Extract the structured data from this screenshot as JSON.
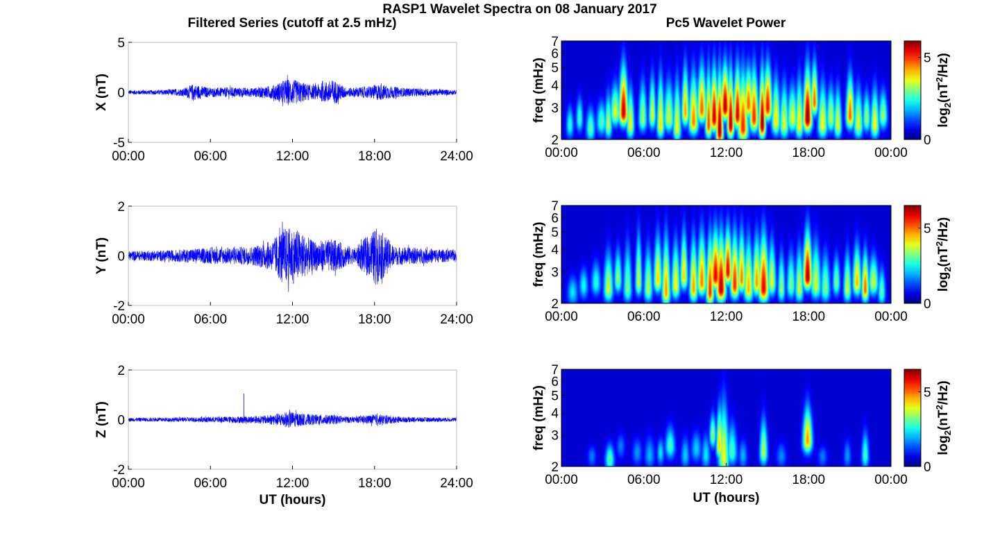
{
  "figure_title": "RASP1 Wavelet Spectra on 08 January 2017",
  "left_column_title": "Filtered Series (cutoff at 2.5 mHz)",
  "right_column_title": "Pc5 Wavelet Power",
  "chart_data": [
    {
      "type": "line",
      "panel": "X time series",
      "ylabel": "X (nT)",
      "xlabel": "",
      "ylim": [
        -5,
        5
      ],
      "yticks": [
        "5",
        "0",
        "-5"
      ],
      "xlim_hours": [
        0,
        24
      ],
      "xticks": [
        "00:00",
        "06:00",
        "12:00",
        "18:00",
        "24:00"
      ],
      "line_color": "#0000ff",
      "envelope": [
        {
          "t": 0,
          "amp": 0.3
        },
        {
          "t": 2,
          "amp": 0.3
        },
        {
          "t": 4,
          "amp": 0.5
        },
        {
          "t": 4.7,
          "amp": 1.1
        },
        {
          "t": 6,
          "amp": 0.6
        },
        {
          "t": 7.5,
          "amp": 0.7
        },
        {
          "t": 9,
          "amp": 0.6
        },
        {
          "t": 10.5,
          "amp": 0.9
        },
        {
          "t": 11.6,
          "amp": 1.8
        },
        {
          "t": 12.3,
          "amp": 1.6
        },
        {
          "t": 13.5,
          "amp": 0.9
        },
        {
          "t": 15,
          "amp": 1.7
        },
        {
          "t": 16,
          "amp": 0.6
        },
        {
          "t": 17.5,
          "amp": 0.8
        },
        {
          "t": 18.3,
          "amp": 1.1
        },
        {
          "t": 20,
          "amp": 0.6
        },
        {
          "t": 22,
          "amp": 0.5
        },
        {
          "t": 24,
          "amp": 0.3
        }
      ]
    },
    {
      "type": "line",
      "panel": "Y time series",
      "ylabel": "Y (nT)",
      "xlabel": "",
      "ylim": [
        -2,
        2
      ],
      "yticks": [
        "2",
        "0",
        "-2"
      ],
      "xlim_hours": [
        0,
        24
      ],
      "xticks": [
        "00:00",
        "06:00",
        "12:00",
        "18:00",
        "24:00"
      ],
      "line_color": "#0000ff",
      "envelope": [
        {
          "t": 0,
          "amp": 0.25
        },
        {
          "t": 3,
          "amp": 0.3
        },
        {
          "t": 5,
          "amp": 0.4
        },
        {
          "t": 7,
          "amp": 0.45
        },
        {
          "t": 9,
          "amp": 0.5
        },
        {
          "t": 10.5,
          "amp": 0.8
        },
        {
          "t": 11.3,
          "amp": 1.5
        },
        {
          "t": 12.2,
          "amp": 1.5
        },
        {
          "t": 13.5,
          "amp": 0.8
        },
        {
          "t": 15,
          "amp": 0.9
        },
        {
          "t": 16.5,
          "amp": 0.4
        },
        {
          "t": 18.2,
          "amp": 1.55
        },
        {
          "t": 19.5,
          "amp": 0.5
        },
        {
          "t": 22,
          "amp": 0.4
        },
        {
          "t": 24,
          "amp": 0.3
        }
      ]
    },
    {
      "type": "line",
      "panel": "Z time series",
      "ylabel": "Z (nT)",
      "xlabel": "UT (hours)",
      "ylim": [
        -2,
        2
      ],
      "yticks": [
        "2",
        "0",
        "-2"
      ],
      "xlim_hours": [
        0,
        24
      ],
      "xticks": [
        "00:00",
        "06:00",
        "12:00",
        "18:00",
        "24:00"
      ],
      "line_color": "#0000ff",
      "spike": {
        "t": 8.45,
        "value": 1.05
      },
      "envelope": [
        {
          "t": 0,
          "amp": 0.1
        },
        {
          "t": 4,
          "amp": 0.12
        },
        {
          "t": 6,
          "amp": 0.15
        },
        {
          "t": 8,
          "amp": 0.18
        },
        {
          "t": 10,
          "amp": 0.22
        },
        {
          "t": 11.8,
          "amp": 0.45
        },
        {
          "t": 13,
          "amp": 0.3
        },
        {
          "t": 15,
          "amp": 0.25
        },
        {
          "t": 16.5,
          "amp": 0.15
        },
        {
          "t": 18.2,
          "amp": 0.3
        },
        {
          "t": 20,
          "amp": 0.15
        },
        {
          "t": 24,
          "amp": 0.1
        }
      ]
    },
    {
      "type": "heatmap",
      "panel": "X wavelet power",
      "ylabel": "freq (mHz)",
      "xlabel": "",
      "ylim_mhz": [
        2,
        7
      ],
      "y_scale": "log",
      "yticks": [
        "2",
        "3",
        "4",
        "5",
        "6",
        "7"
      ],
      "xlim_hours": [
        0,
        24
      ],
      "xticks": [
        "00:00",
        "06:00",
        "12:00",
        "18:00",
        "00:00"
      ],
      "colormap": "jet",
      "colorbar_label_main": "log",
      "colorbar_label_sub": "2",
      "colorbar_label_paren_open": "(nT",
      "colorbar_label_sup": "2",
      "colorbar_label_rest": "/Hz)",
      "colorbar_range": [
        0,
        6
      ],
      "colorbar_ticks": [
        "5",
        "0"
      ],
      "bursts": [
        {
          "t": 0.6,
          "f": 2.4,
          "p": 2.2,
          "top": 3.5
        },
        {
          "t": 1.3,
          "f": 2.6,
          "p": 2.4,
          "top": 4.0
        },
        {
          "t": 2.1,
          "f": 2.3,
          "p": 2.6,
          "top": 3.5
        },
        {
          "t": 2.9,
          "f": 2.5,
          "p": 2.5,
          "top": 3.8
        },
        {
          "t": 3.4,
          "f": 2.4,
          "p": 3.2,
          "top": 4.5
        },
        {
          "t": 3.9,
          "f": 2.8,
          "p": 3.4,
          "top": 5.0
        },
        {
          "t": 4.5,
          "f": 2.8,
          "p": 5.6,
          "top": 7.0
        },
        {
          "t": 5.0,
          "f": 2.4,
          "p": 3.6,
          "top": 5.0
        },
        {
          "t": 5.9,
          "f": 2.6,
          "p": 3.0,
          "top": 5.5
        },
        {
          "t": 6.6,
          "f": 2.7,
          "p": 3.4,
          "top": 6.0
        },
        {
          "t": 7.2,
          "f": 2.4,
          "p": 3.8,
          "top": 6.5
        },
        {
          "t": 7.8,
          "f": 2.6,
          "p": 3.3,
          "top": 5.5
        },
        {
          "t": 8.4,
          "f": 2.3,
          "p": 3.6,
          "top": 6.0
        },
        {
          "t": 9.0,
          "f": 2.8,
          "p": 4.2,
          "top": 7.0
        },
        {
          "t": 9.6,
          "f": 2.5,
          "p": 4.4,
          "top": 6.5
        },
        {
          "t": 10.2,
          "f": 2.9,
          "p": 4.6,
          "top": 7.0
        },
        {
          "t": 10.7,
          "f": 2.4,
          "p": 4.8,
          "top": 7.0
        },
        {
          "t": 11.1,
          "f": 2.6,
          "p": 5.6,
          "top": 7.0
        },
        {
          "t": 11.5,
          "f": 2.2,
          "p": 5.9,
          "top": 7.0
        },
        {
          "t": 11.9,
          "f": 3.0,
          "p": 5.7,
          "top": 7.0
        },
        {
          "t": 12.3,
          "f": 2.4,
          "p": 5.8,
          "top": 7.0
        },
        {
          "t": 12.8,
          "f": 2.7,
          "p": 5.5,
          "top": 7.0
        },
        {
          "t": 13.2,
          "f": 2.3,
          "p": 5.0,
          "top": 7.0
        },
        {
          "t": 13.6,
          "f": 3.1,
          "p": 4.6,
          "top": 6.5
        },
        {
          "t": 14.0,
          "f": 2.6,
          "p": 5.0,
          "top": 7.0
        },
        {
          "t": 14.6,
          "f": 2.4,
          "p": 6.0,
          "top": 7.0
        },
        {
          "t": 15.0,
          "f": 3.0,
          "p": 5.2,
          "top": 7.0
        },
        {
          "t": 15.6,
          "f": 2.5,
          "p": 3.8,
          "top": 6.0
        },
        {
          "t": 16.2,
          "f": 2.4,
          "p": 3.4,
          "top": 5.5
        },
        {
          "t": 16.8,
          "f": 2.6,
          "p": 3.5,
          "top": 5.0
        },
        {
          "t": 17.3,
          "f": 2.4,
          "p": 3.8,
          "top": 6.0
        },
        {
          "t": 17.9,
          "f": 2.6,
          "p": 6.0,
          "top": 7.0
        },
        {
          "t": 18.4,
          "f": 3.2,
          "p": 4.6,
          "top": 7.0
        },
        {
          "t": 19.0,
          "f": 2.4,
          "p": 3.6,
          "top": 5.5
        },
        {
          "t": 19.6,
          "f": 2.6,
          "p": 3.2,
          "top": 5.0
        },
        {
          "t": 20.1,
          "f": 2.4,
          "p": 3.5,
          "top": 5.0
        },
        {
          "t": 21.0,
          "f": 2.7,
          "p": 4.6,
          "top": 6.0
        },
        {
          "t": 21.6,
          "f": 2.4,
          "p": 3.4,
          "top": 5.0
        },
        {
          "t": 22.2,
          "f": 2.6,
          "p": 3.0,
          "top": 4.5
        },
        {
          "t": 22.8,
          "f": 2.4,
          "p": 3.6,
          "top": 5.0
        },
        {
          "t": 23.4,
          "f": 2.7,
          "p": 3.0,
          "top": 4.5
        }
      ]
    },
    {
      "type": "heatmap",
      "panel": "Y wavelet power",
      "ylabel": "freq (mHz)",
      "xlabel": "",
      "ylim_mhz": [
        2,
        7
      ],
      "y_scale": "log",
      "yticks": [
        "2",
        "3",
        "4",
        "5",
        "6",
        "7"
      ],
      "xlim_hours": [
        0,
        24
      ],
      "xticks": [
        "00:00",
        "06:00",
        "12:00",
        "18:00",
        "00:00"
      ],
      "colormap": "jet",
      "colorbar_label_main": "log",
      "colorbar_label_sub": "2",
      "colorbar_label_paren_open": "(nT",
      "colorbar_label_sup": "2",
      "colorbar_label_rest": "/Hz)",
      "colorbar_range": [
        0,
        6.5
      ],
      "colorbar_ticks": [
        "5",
        "0"
      ],
      "bursts": [
        {
          "t": 0.8,
          "f": 2.3,
          "p": 2.0,
          "top": 3.2
        },
        {
          "t": 1.6,
          "f": 2.5,
          "p": 2.2,
          "top": 3.6
        },
        {
          "t": 2.5,
          "f": 2.6,
          "p": 2.4,
          "top": 4.0
        },
        {
          "t": 3.4,
          "f": 2.4,
          "p": 3.6,
          "top": 5.0
        },
        {
          "t": 4.1,
          "f": 2.7,
          "p": 3.2,
          "top": 5.0
        },
        {
          "t": 4.8,
          "f": 2.4,
          "p": 3.0,
          "top": 6.0
        },
        {
          "t": 5.6,
          "f": 2.6,
          "p": 3.6,
          "top": 7.0
        },
        {
          "t": 6.3,
          "f": 2.4,
          "p": 3.4,
          "top": 5.5
        },
        {
          "t": 7.0,
          "f": 2.7,
          "p": 4.2,
          "top": 6.5
        },
        {
          "t": 7.6,
          "f": 2.3,
          "p": 4.6,
          "top": 7.0
        },
        {
          "t": 8.3,
          "f": 2.5,
          "p": 4.0,
          "top": 6.0
        },
        {
          "t": 8.9,
          "f": 2.8,
          "p": 4.2,
          "top": 7.0
        },
        {
          "t": 9.6,
          "f": 2.4,
          "p": 4.6,
          "top": 6.5
        },
        {
          "t": 10.2,
          "f": 2.6,
          "p": 4.8,
          "top": 7.0
        },
        {
          "t": 10.8,
          "f": 2.3,
          "p": 5.4,
          "top": 7.0
        },
        {
          "t": 11.2,
          "f": 2.8,
          "p": 5.8,
          "top": 7.0
        },
        {
          "t": 11.6,
          "f": 2.4,
          "p": 6.2,
          "top": 7.0
        },
        {
          "t": 12.1,
          "f": 3.0,
          "p": 5.8,
          "top": 7.0
        },
        {
          "t": 12.6,
          "f": 2.5,
          "p": 5.4,
          "top": 7.0
        },
        {
          "t": 13.1,
          "f": 2.7,
          "p": 4.8,
          "top": 7.0
        },
        {
          "t": 13.6,
          "f": 2.4,
          "p": 4.4,
          "top": 6.5
        },
        {
          "t": 14.2,
          "f": 2.6,
          "p": 4.6,
          "top": 6.5
        },
        {
          "t": 14.7,
          "f": 2.4,
          "p": 5.8,
          "top": 7.0
        },
        {
          "t": 15.3,
          "f": 2.6,
          "p": 3.8,
          "top": 6.0
        },
        {
          "t": 16.0,
          "f": 2.4,
          "p": 3.2,
          "top": 5.0
        },
        {
          "t": 16.7,
          "f": 2.5,
          "p": 3.0,
          "top": 5.0
        },
        {
          "t": 17.3,
          "f": 2.4,
          "p": 3.6,
          "top": 5.5
        },
        {
          "t": 17.9,
          "f": 2.8,
          "p": 6.2,
          "top": 7.0
        },
        {
          "t": 18.5,
          "f": 2.5,
          "p": 3.6,
          "top": 6.0
        },
        {
          "t": 19.2,
          "f": 2.4,
          "p": 3.0,
          "top": 5.0
        },
        {
          "t": 20.0,
          "f": 2.6,
          "p": 3.0,
          "top": 4.5
        },
        {
          "t": 20.8,
          "f": 2.4,
          "p": 3.6,
          "top": 5.0
        },
        {
          "t": 21.5,
          "f": 2.6,
          "p": 4.4,
          "top": 5.5
        },
        {
          "t": 22.1,
          "f": 2.4,
          "p": 5.0,
          "top": 5.0
        },
        {
          "t": 22.7,
          "f": 2.6,
          "p": 3.6,
          "top": 4.5
        },
        {
          "t": 23.3,
          "f": 2.3,
          "p": 2.8,
          "top": 3.8
        }
      ]
    },
    {
      "type": "heatmap",
      "panel": "Z wavelet power",
      "ylabel": "freq (mHz)",
      "xlabel": "UT (hours)",
      "ylim_mhz": [
        2,
        7
      ],
      "y_scale": "log",
      "yticks": [
        "2",
        "3",
        "4",
        "5",
        "6",
        "7"
      ],
      "xlim_hours": [
        0,
        24
      ],
      "xticks": [
        "00:00",
        "06:00",
        "12:00",
        "18:00",
        "00:00"
      ],
      "colormap": "jet",
      "colorbar_label_main": "log",
      "colorbar_label_sub": "2",
      "colorbar_label_paren_open": "(nT",
      "colorbar_label_sup": "2",
      "colorbar_label_rest": "/Hz)",
      "colorbar_range": [
        0,
        6.5
      ],
      "colorbar_ticks": [
        "5",
        "0"
      ],
      "bursts": [
        {
          "t": 2.2,
          "f": 2.3,
          "p": 1.2,
          "top": 2.8
        },
        {
          "t": 3.5,
          "f": 2.2,
          "p": 2.8,
          "top": 3.0
        },
        {
          "t": 4.3,
          "f": 2.6,
          "p": 1.2,
          "top": 3.4
        },
        {
          "t": 5.5,
          "f": 2.4,
          "p": 1.4,
          "top": 3.2
        },
        {
          "t": 6.4,
          "f": 2.3,
          "p": 1.6,
          "top": 3.4
        },
        {
          "t": 7.2,
          "f": 2.4,
          "p": 2.0,
          "top": 3.2
        },
        {
          "t": 7.9,
          "f": 2.6,
          "p": 2.6,
          "top": 3.9
        },
        {
          "t": 9.0,
          "f": 2.3,
          "p": 1.8,
          "top": 3.4
        },
        {
          "t": 9.8,
          "f": 2.5,
          "p": 1.8,
          "top": 3.6
        },
        {
          "t": 10.5,
          "f": 2.3,
          "p": 2.0,
          "top": 3.6
        },
        {
          "t": 11.0,
          "f": 3.0,
          "p": 3.2,
          "top": 4.6
        },
        {
          "t": 11.5,
          "f": 2.6,
          "p": 4.2,
          "top": 5.8
        },
        {
          "t": 11.8,
          "f": 2.2,
          "p": 3.8,
          "top": 7.0
        },
        {
          "t": 12.4,
          "f": 2.4,
          "p": 2.6,
          "top": 4.4
        },
        {
          "t": 13.2,
          "f": 2.3,
          "p": 1.6,
          "top": 3.2
        },
        {
          "t": 14.7,
          "f": 2.4,
          "p": 3.4,
          "top": 4.8
        },
        {
          "t": 16.0,
          "f": 2.3,
          "p": 1.3,
          "top": 3.0
        },
        {
          "t": 17.9,
          "f": 2.8,
          "p": 4.6,
          "top": 5.6
        },
        {
          "t": 19.0,
          "f": 2.3,
          "p": 1.2,
          "top": 2.8
        },
        {
          "t": 20.8,
          "f": 2.3,
          "p": 1.4,
          "top": 3.2
        },
        {
          "t": 22.1,
          "f": 2.3,
          "p": 2.6,
          "top": 3.8
        }
      ]
    }
  ]
}
